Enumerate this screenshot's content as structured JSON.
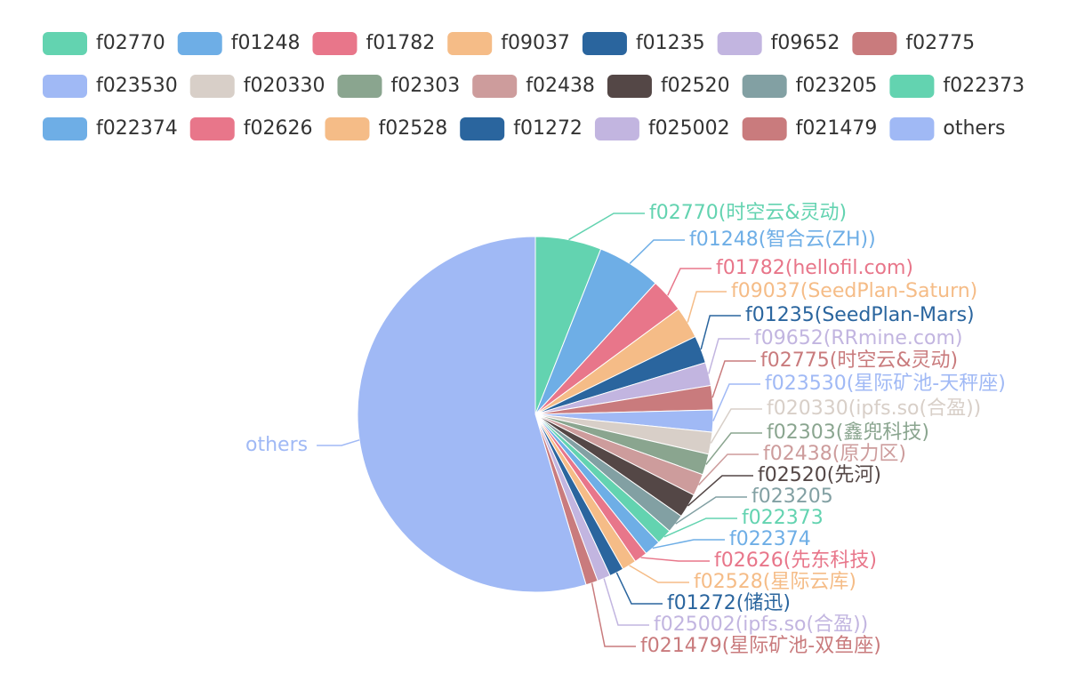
{
  "chart_data": {
    "type": "pie",
    "categories": [
      "f02770",
      "f01248",
      "f01782",
      "f09037",
      "f01235",
      "f09652",
      "f02775",
      "f023530",
      "f020330",
      "f02303",
      "f02438",
      "f02520",
      "f023205",
      "f022373",
      "f022374",
      "f02626",
      "f02528",
      "f01272",
      "f025002",
      "f021479",
      "others"
    ],
    "labels": [
      "f02770(时空云&灵动)",
      "f01248(智合云(ZH))",
      "f01782(hellofil.com)",
      "f09037(SeedPlan-Saturn)",
      "f01235(SeedPlan-Mars)",
      "f09652(RRmine.com)",
      "f02775(时空云&灵动)",
      "f023530(星际矿池-天秤座)",
      "f020330(ipfs.so(合盈))",
      "f02303(鑫兜科技)",
      "f02438(原力区)",
      "f02520(先河)",
      "f023205",
      "f022373",
      "f022374",
      "f02626(先东科技)",
      "f02528(星际云库)",
      "f01272(储迅)",
      "f025002(ipfs.so(合盈))",
      "f021479(星际矿池-双鱼座)",
      "others"
    ],
    "values": [
      6.0,
      5.8,
      3.1,
      2.9,
      2.5,
      2.1,
      2.2,
      2.0,
      2.0,
      1.9,
      2.0,
      2.2,
      1.7,
      1.4,
      1.5,
      1.2,
      1.3,
      1.3,
      1.2,
      1.1,
      54.6
    ],
    "colors": [
      "#63d3b0",
      "#6eaee6",
      "#e8768a",
      "#f5bc87",
      "#2a659e",
      "#c2b5e0",
      "#c97b7d",
      "#a0b9f5",
      "#d8cfc8",
      "#8aa58f",
      "#cd9c9c",
      "#544746",
      "#82a0a3",
      "#63d3b0",
      "#6eaee6",
      "#e8768a",
      "#f5bc87",
      "#2a659e",
      "#c2b5e0",
      "#c97b7d",
      "#a0b9f5"
    ]
  }
}
